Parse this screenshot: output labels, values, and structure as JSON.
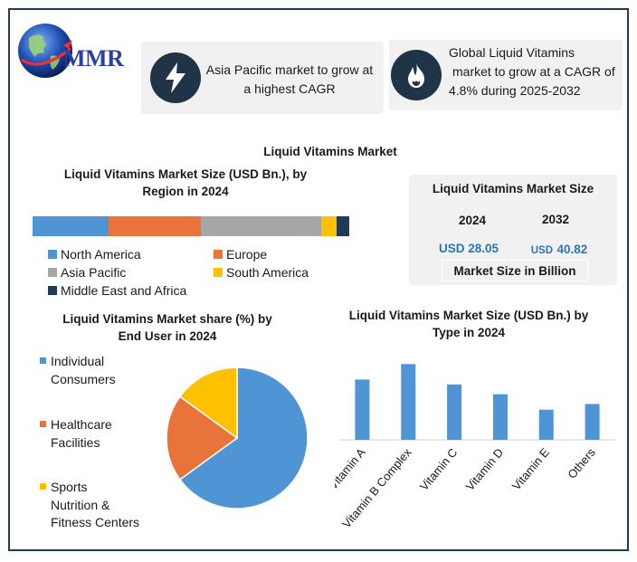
{
  "logo": {
    "text": "MMR"
  },
  "kpis": [
    {
      "icon": "lightning-icon",
      "text": "Asia Pacific market to grow at a highest CAGR",
      "lines": [
        "Asia Pacific market to grow at",
        "a highest CAGR"
      ]
    },
    {
      "icon": "flame-icon",
      "text": "Global Liquid Vitamins market to grow at a CAGR of 4.8% during 2025-2032",
      "lines": [
        "Global Liquid Vitamins",
        "market to grow at a CAGR of",
        "4.8% during 2025-2032"
      ]
    }
  ],
  "main_title": "Liquid Vitamins Market",
  "market_size": {
    "title": "Liquid Vitamins Market Size",
    "years": [
      "2024",
      "2032"
    ],
    "values": [
      "USD 28.05",
      "USD 40.82"
    ],
    "value_prefix": "USD",
    "value_numbers": [
      "28.05",
      "40.82"
    ],
    "footer": "Market Size in Billion"
  },
  "colors": {
    "blue": "#4f94d4",
    "orange": "#e9743a",
    "gray": "#a6a6a6",
    "yellow": "#ffc000",
    "navy": "#1f3b57",
    "accent_value": "#2e75b6"
  },
  "chart_data": [
    {
      "type": "bar",
      "orientation": "horizontal-stacked",
      "title": "Liquid Vitamins Market Size (USD Bn.), by Region in 2024",
      "title_lines": [
        "Liquid Vitamins Market Size (USD Bn.), by",
        "Region in 2024"
      ],
      "series": [
        {
          "name": "North America",
          "values": [
            24
          ],
          "color": "#4f94d4"
        },
        {
          "name": "Europe",
          "values": [
            29
          ],
          "color": "#e9743a"
        },
        {
          "name": "Asia Pacific",
          "values": [
            38
          ],
          "color": "#a6a6a6"
        },
        {
          "name": "South America",
          "values": [
            5
          ],
          "color": "#ffc000"
        },
        {
          "name": "Middle East and Africa",
          "values": [
            4
          ],
          "color": "#1f3b57"
        }
      ],
      "legend": "bottom"
    },
    {
      "type": "pie",
      "title": "Liquid Vitamins Market share (%) by End User in 2024",
      "title_lines": [
        "Liquid Vitamins Market share (%) by",
        "End User in 2024"
      ],
      "slices": [
        {
          "name": "Individual Consumers",
          "name_lines": [
            "Individual",
            "Consumers"
          ],
          "value": 65,
          "color": "#4f94d4"
        },
        {
          "name": "Healthcare Facilities",
          "name_lines": [
            "Healthcare",
            "Facilities"
          ],
          "value": 20,
          "color": "#e9743a"
        },
        {
          "name": "Sports Nutrition & Fitness Centers",
          "name_lines": [
            "Sports",
            "Nutrition &",
            "Fitness Centers"
          ],
          "value": 15,
          "color": "#ffc000"
        }
      ],
      "legend": "left"
    },
    {
      "type": "bar",
      "title": "Liquid Vitamins Market Size (USD Bn.) by Type in 2024",
      "title_lines": [
        "Liquid Vitamins Market Size (USD Bn.) by",
        "Type in 2024"
      ],
      "categories": [
        "Vitamin A",
        "Vitamin B Complex",
        "Vitamin C",
        "Vitamin D",
        "Vitamin E",
        "Others"
      ],
      "values": [
        7.4,
        9.3,
        6.8,
        5.6,
        3.7,
        4.4
      ],
      "ylim": [
        0,
        10
      ],
      "color": "#4f94d4",
      "grid": false
    }
  ]
}
